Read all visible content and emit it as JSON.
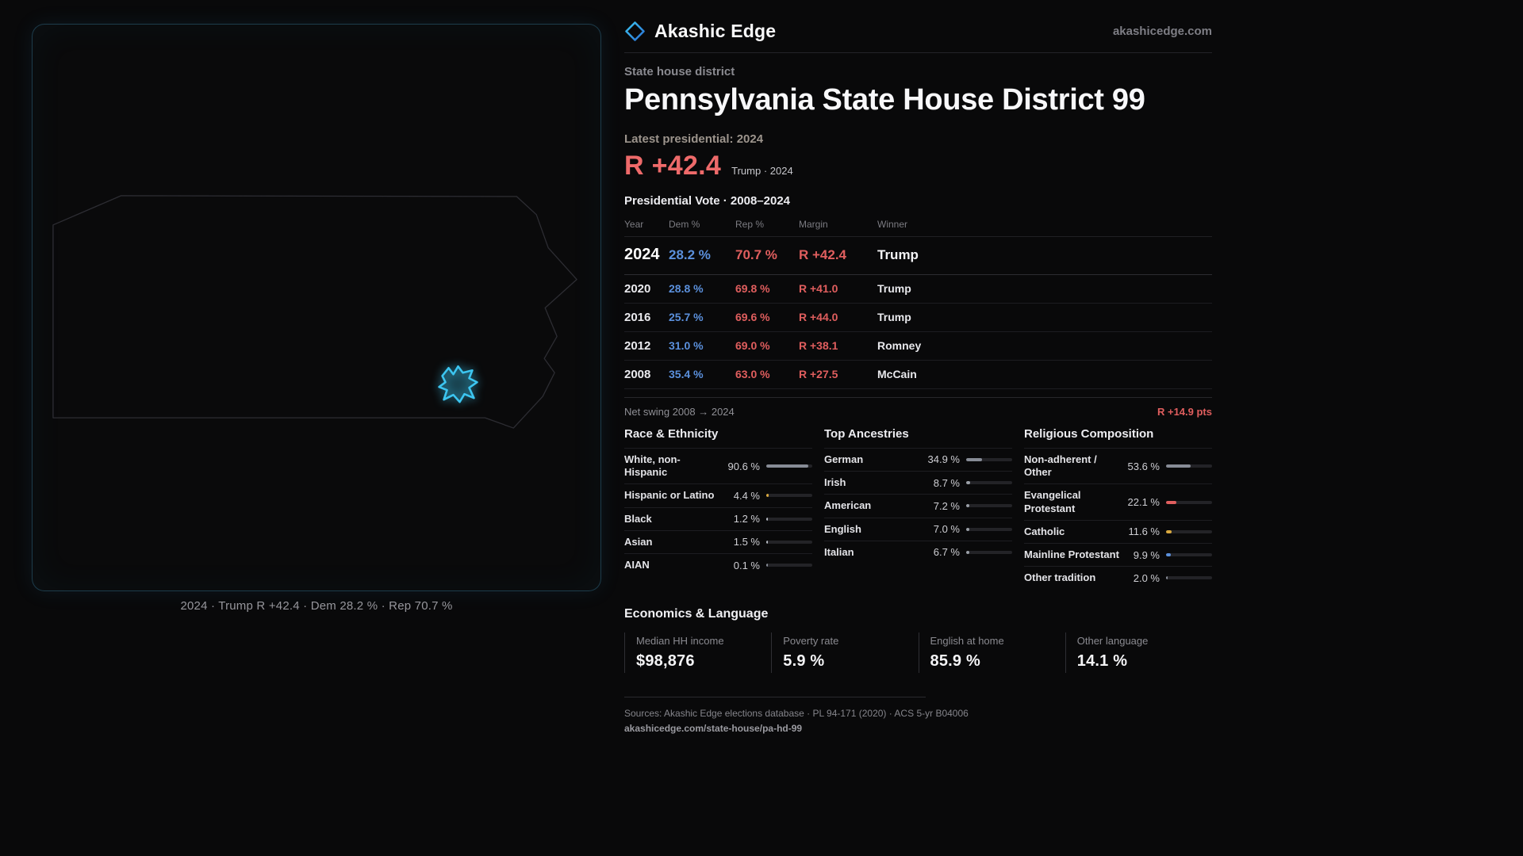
{
  "brand": {
    "name": "Akashic Edge",
    "domain": "akashicedge.com",
    "accent_cyan": "#3cc5f0",
    "dem_blue": "#5b90dc",
    "rep_red": "#e05e5e"
  },
  "map": {
    "caption": "2024 · Trump R +42.4 · Dem 28.2 % · Rep 70.7 %"
  },
  "header": {
    "kicker": "State house district",
    "title": "Pennsylvania State House District 99",
    "latest_label": "Latest presidential: 2024",
    "margin_value": "R +42.4",
    "margin_note": "Trump · 2024"
  },
  "vote_table": {
    "title": "Presidential Vote · 2008–2024",
    "columns": [
      "Year",
      "Dem %",
      "Rep %",
      "Margin",
      "Winner"
    ],
    "rows": [
      {
        "year": "2024",
        "dem": "28.2 %",
        "rep": "70.7 %",
        "margin": "R +42.4",
        "winner": "Trump",
        "cls": "row-major"
      },
      {
        "year": "2020",
        "dem": "28.8 %",
        "rep": "69.8 %",
        "margin": "R +41.0",
        "winner": "Trump"
      },
      {
        "year": "2016",
        "dem": "25.7 %",
        "rep": "69.6 %",
        "margin": "R +44.0",
        "winner": "Trump"
      },
      {
        "year": "2012",
        "dem": "31.0 %",
        "rep": "69.0 %",
        "margin": "R +38.1",
        "winner": "Romney"
      },
      {
        "year": "2008",
        "dem": "35.4 %",
        "rep": "63.0 %",
        "margin": "R +27.5",
        "winner": "McCain"
      }
    ],
    "swing_label": "Net swing 2008 → 2024",
    "swing_value": "R +14.9 pts"
  },
  "demographics": {
    "race": {
      "title": "Race & Ethnicity",
      "items": [
        {
          "label": "White, non-Hispanic",
          "value": "90.6 %",
          "pct": 90.6,
          "color": "#878c96"
        },
        {
          "label": "Hispanic or Latino",
          "value": "4.4 %",
          "pct": 4.4,
          "color": "#d9a93f"
        },
        {
          "label": "Black",
          "value": "1.2 %",
          "pct": 1.2,
          "color": "#b7bcc4"
        },
        {
          "label": "Asian",
          "value": "1.5 %",
          "pct": 1.5,
          "color": "#b7bcc4"
        },
        {
          "label": "AIAN",
          "value": "0.1 %",
          "pct": 0.1,
          "color": "#878c96"
        }
      ]
    },
    "ancestries": {
      "title": "Top Ancestries",
      "items": [
        {
          "label": "German",
          "value": "34.9 %",
          "pct": 34.9,
          "color": "#878c96"
        },
        {
          "label": "Irish",
          "value": "8.7 %",
          "pct": 8.7,
          "color": "#9ba0a8"
        },
        {
          "label": "American",
          "value": "7.2 %",
          "pct": 7.2,
          "color": "#9ba0a8"
        },
        {
          "label": "English",
          "value": "7.0 %",
          "pct": 7.0,
          "color": "#9ba0a8"
        },
        {
          "label": "Italian",
          "value": "6.7 %",
          "pct": 6.7,
          "color": "#9ba0a8"
        }
      ]
    },
    "religion": {
      "title": "Religious Composition",
      "items": [
        {
          "label": "Non-adherent / Other",
          "value": "53.6 %",
          "pct": 53.6,
          "color": "#878c96"
        },
        {
          "label": "Evangelical Protestant",
          "value": "22.1 %",
          "pct": 22.1,
          "color": "#e05e5e"
        },
        {
          "label": "Catholic",
          "value": "11.6 %",
          "pct": 11.6,
          "color": "#d9a93f"
        },
        {
          "label": "Mainline Protestant",
          "value": "9.9 %",
          "pct": 9.9,
          "color": "#5b90dc"
        },
        {
          "label": "Other tradition",
          "value": "2.0 %",
          "pct": 2.0,
          "color": "#878c96"
        }
      ]
    }
  },
  "economics": {
    "title": "Economics & Language",
    "stats": [
      {
        "label": "Median HH income",
        "value": "$98,876"
      },
      {
        "label": "Poverty rate",
        "value": "5.9 %"
      },
      {
        "label": "English at home",
        "value": "85.9 %"
      },
      {
        "label": "Other language",
        "value": "14.1 %"
      }
    ]
  },
  "footer": {
    "sources": "Sources: Akashic Edge elections database · PL 94-171 (2020) · ACS 5-yr B04006",
    "url": "akashicedge.com/state-house/pa-hd-99"
  },
  "chart_data": [
    {
      "type": "table",
      "title": "Presidential Vote · 2008–2024",
      "columns": [
        "Year",
        "Dem %",
        "Rep %",
        "Margin",
        "Winner"
      ],
      "rows": [
        [
          "2024",
          28.2,
          70.7,
          "R +42.4",
          "Trump"
        ],
        [
          "2020",
          28.8,
          69.8,
          "R +41.0",
          "Trump"
        ],
        [
          "2016",
          25.7,
          69.6,
          "R +44.0",
          "Trump"
        ],
        [
          "2012",
          31.0,
          69.0,
          "R +38.1",
          "Romney"
        ],
        [
          "2008",
          35.4,
          63.0,
          "R +27.5",
          "McCain"
        ]
      ],
      "net_swing": "R +14.9 pts"
    },
    {
      "type": "bar",
      "title": "Race & Ethnicity",
      "categories": [
        "White, non-Hispanic",
        "Hispanic or Latino",
        "Black",
        "Asian",
        "AIAN"
      ],
      "values": [
        90.6,
        4.4,
        1.2,
        1.5,
        0.1
      ],
      "unit": "%",
      "xlim": [
        0,
        100
      ]
    },
    {
      "type": "bar",
      "title": "Top Ancestries",
      "categories": [
        "German",
        "Irish",
        "American",
        "English",
        "Italian"
      ],
      "values": [
        34.9,
        8.7,
        7.2,
        7.0,
        6.7
      ],
      "unit": "%",
      "xlim": [
        0,
        100
      ]
    },
    {
      "type": "bar",
      "title": "Religious Composition",
      "categories": [
        "Non-adherent / Other",
        "Evangelical Protestant",
        "Catholic",
        "Mainline Protestant",
        "Other tradition"
      ],
      "values": [
        53.6,
        22.1,
        11.6,
        9.9,
        2.0
      ],
      "unit": "%",
      "xlim": [
        0,
        100
      ]
    }
  ]
}
